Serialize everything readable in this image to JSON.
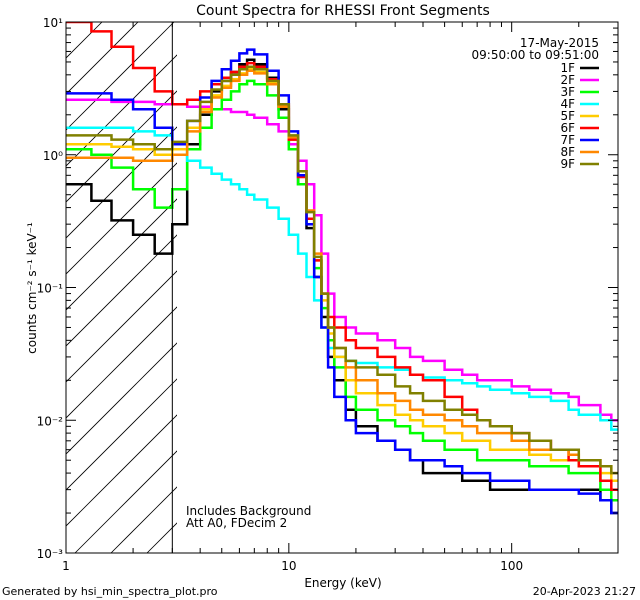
{
  "chart_data": {
    "type": "line",
    "title": "Count Spectra for RHESSI Front Segments",
    "xlabel": "Energy (keV)",
    "ylabel": "counts cm⁻² s⁻¹ keV⁻¹",
    "xscale": "log",
    "yscale": "log",
    "xlim": [
      1,
      300
    ],
    "ylim": [
      0.001,
      10
    ],
    "x_ticks": [
      {
        "value": 1,
        "label": "1"
      },
      {
        "value": 10,
        "label": "10"
      },
      {
        "value": 100,
        "label": "100"
      }
    ],
    "y_ticks": [
      {
        "value": 0.001,
        "label": "10⁻³"
      },
      {
        "value": 0.01,
        "label": "10⁻²"
      },
      {
        "value": 0.1,
        "label": "10⁻¹"
      },
      {
        "value": 1,
        "label": "10⁰"
      },
      {
        "value": 10,
        "label": "10¹"
      }
    ],
    "legend": {
      "date": "17-May-2015",
      "time_range": "09:50:00 to 09:51:00",
      "placement": "top-right"
    },
    "shaded_region": {
      "x_from": 1,
      "x_to": 3,
      "pattern": "diagonal-hatch"
    },
    "annotations": [
      "Includes Background",
      "Att A0, FDecim 2"
    ],
    "footer_left": "Generated by hsi_min_spectra_plot.pro",
    "footer_right": "20-Apr-2023 21:27",
    "series": [
      {
        "name": "1F",
        "color": "#000000",
        "x": [
          1,
          1.3,
          1.6,
          2,
          2.5,
          3,
          3.5,
          4,
          4.5,
          5,
          5.5,
          6,
          6.5,
          7,
          8,
          9,
          10,
          11,
          12,
          13,
          14,
          15,
          16,
          18,
          20,
          25,
          30,
          35,
          40,
          50,
          60,
          70,
          80,
          100,
          120,
          150,
          180,
          200,
          250,
          280
        ],
        "y": [
          0.6,
          0.45,
          0.32,
          0.25,
          0.18,
          0.3,
          1.2,
          2,
          3,
          3.6,
          4.2,
          4.8,
          5.2,
          4.8,
          3.8,
          2.2,
          1.2,
          0.6,
          0.28,
          0.12,
          0.06,
          0.03,
          0.02,
          0.012,
          0.009,
          0.007,
          0.006,
          0.005,
          0.004,
          0.004,
          0.0035,
          0.0035,
          0.003,
          0.003,
          0.003,
          0.003,
          0.003,
          0.003,
          0.0025,
          0.002
        ]
      },
      {
        "name": "2F",
        "color": "#ff00ff",
        "x": [
          1,
          1.3,
          1.6,
          2,
          2.5,
          3,
          3.5,
          4,
          4.5,
          5,
          5.5,
          6,
          6.5,
          7,
          8,
          9,
          10,
          11,
          12,
          13,
          14,
          15,
          16,
          18,
          20,
          25,
          30,
          35,
          40,
          50,
          60,
          70,
          80,
          100,
          120,
          150,
          180,
          200,
          250,
          280
        ],
        "y": [
          2.6,
          2.6,
          2.5,
          2.5,
          2.4,
          2.4,
          2.3,
          2.3,
          2.2,
          2.2,
          2.1,
          2.1,
          2,
          1.9,
          1.7,
          1.5,
          1.2,
          0.9,
          0.6,
          0.35,
          0.18,
          0.09,
          0.06,
          0.05,
          0.045,
          0.04,
          0.035,
          0.03,
          0.028,
          0.024,
          0.022,
          0.02,
          0.02,
          0.018,
          0.017,
          0.016,
          0.015,
          0.013,
          0.011,
          0.01
        ]
      },
      {
        "name": "3F",
        "color": "#00ff00",
        "x": [
          1,
          1.3,
          1.6,
          2,
          2.5,
          3,
          3.5,
          4,
          4.5,
          5,
          5.5,
          6,
          6.5,
          7,
          8,
          9,
          10,
          11,
          12,
          13,
          14,
          15,
          16,
          18,
          20,
          25,
          30,
          35,
          40,
          50,
          60,
          70,
          80,
          100,
          120,
          150,
          180,
          200,
          250,
          280
        ],
        "y": [
          1.1,
          1,
          0.8,
          0.55,
          0.4,
          0.55,
          1.1,
          1.6,
          2.2,
          2.6,
          3,
          3.4,
          3.6,
          3.4,
          2.8,
          1.9,
          1.1,
          0.6,
          0.3,
          0.14,
          0.07,
          0.04,
          0.025,
          0.015,
          0.012,
          0.01,
          0.009,
          0.008,
          0.007,
          0.006,
          0.006,
          0.005,
          0.005,
          0.005,
          0.0045,
          0.0045,
          0.004,
          0.004,
          0.003,
          0.0025
        ]
      },
      {
        "name": "4F",
        "color": "#00ffff",
        "x": [
          1,
          1.3,
          1.6,
          2,
          2.5,
          3,
          3.5,
          4,
          4.5,
          5,
          5.5,
          6,
          6.5,
          7,
          8,
          9,
          10,
          11,
          12,
          13,
          14,
          15,
          16,
          18,
          20,
          25,
          30,
          35,
          40,
          50,
          60,
          70,
          80,
          100,
          120,
          150,
          180,
          200,
          250,
          280
        ],
        "y": [
          1.6,
          1.6,
          1.6,
          1.5,
          1.4,
          1.1,
          0.9,
          0.8,
          0.72,
          0.65,
          0.6,
          0.55,
          0.5,
          0.46,
          0.4,
          0.33,
          0.25,
          0.18,
          0.12,
          0.08,
          0.05,
          0.035,
          0.03,
          0.028,
          0.027,
          0.025,
          0.024,
          0.022,
          0.021,
          0.02,
          0.019,
          0.018,
          0.017,
          0.016,
          0.015,
          0.014,
          0.012,
          0.011,
          0.01,
          0.0085
        ]
      },
      {
        "name": "5F",
        "color": "#ffcc00",
        "x": [
          1,
          1.3,
          1.6,
          2,
          2.5,
          3,
          3.5,
          4,
          4.5,
          5,
          5.5,
          6,
          6.5,
          7,
          8,
          9,
          10,
          11,
          12,
          13,
          14,
          15,
          16,
          18,
          20,
          25,
          30,
          35,
          40,
          50,
          60,
          70,
          80,
          100,
          120,
          150,
          180,
          200,
          250,
          280
        ],
        "y": [
          1.2,
          1.2,
          1.15,
          1.1,
          1,
          1.1,
          1.6,
          2.2,
          2.8,
          3.3,
          3.7,
          4.1,
          4.4,
          4.2,
          3.5,
          2.3,
          1.3,
          0.7,
          0.33,
          0.16,
          0.08,
          0.045,
          0.03,
          0.02,
          0.016,
          0.013,
          0.011,
          0.01,
          0.009,
          0.008,
          0.007,
          0.007,
          0.006,
          0.006,
          0.0055,
          0.005,
          0.005,
          0.0045,
          0.004,
          0.0035
        ]
      },
      {
        "name": "6F",
        "color": "#ff0000",
        "x": [
          1,
          1.3,
          1.6,
          2,
          2.5,
          3,
          3.5,
          4,
          4.5,
          5,
          5.5,
          6,
          6.5,
          7,
          8,
          9,
          10,
          11,
          12,
          13,
          14,
          15,
          16,
          18,
          20,
          25,
          30,
          35,
          40,
          50,
          60,
          70,
          80,
          100,
          120,
          150,
          180,
          200,
          250,
          280
        ],
        "y": [
          10,
          8.5,
          6.5,
          4.5,
          3,
          2.4,
          2.6,
          3,
          3.4,
          3.8,
          4.2,
          4.6,
          4.9,
          4.6,
          3.7,
          2.4,
          1.3,
          0.68,
          0.33,
          0.16,
          0.09,
          0.06,
          0.05,
          0.04,
          0.035,
          0.03,
          0.025,
          0.022,
          0.02,
          0.015,
          0.012,
          0.01,
          0.009,
          0.008,
          0.007,
          0.006,
          0.005,
          0.0045,
          0.0035,
          0.003
        ]
      },
      {
        "name": "7F",
        "color": "#0000ff",
        "x": [
          1,
          1.3,
          1.6,
          2,
          2.5,
          3,
          3.5,
          4,
          4.5,
          5,
          5.5,
          6,
          6.5,
          7,
          8,
          9,
          10,
          11,
          12,
          13,
          14,
          15,
          16,
          18,
          20,
          25,
          30,
          35,
          40,
          50,
          60,
          70,
          80,
          100,
          120,
          150,
          180,
          200,
          250,
          280
        ],
        "y": [
          2.9,
          2.9,
          2.6,
          2.2,
          1.6,
          1.2,
          1.8,
          2.7,
          3.6,
          4.4,
          5.1,
          5.8,
          6.2,
          5.7,
          4.3,
          2.8,
          1.5,
          0.7,
          0.3,
          0.12,
          0.05,
          0.025,
          0.015,
          0.01,
          0.008,
          0.007,
          0.006,
          0.005,
          0.005,
          0.0045,
          0.004,
          0.004,
          0.0035,
          0.0035,
          0.003,
          0.003,
          0.003,
          0.0028,
          0.0025,
          0.002
        ]
      },
      {
        "name": "8F",
        "color": "#ff8800",
        "x": [
          1,
          1.3,
          1.6,
          2,
          2.5,
          3,
          3.5,
          4,
          4.5,
          5,
          5.5,
          6,
          6.5,
          7,
          8,
          9,
          10,
          11,
          12,
          13,
          14,
          15,
          16,
          18,
          20,
          25,
          30,
          35,
          40,
          50,
          60,
          70,
          80,
          100,
          120,
          150,
          180,
          200,
          250,
          280
        ],
        "y": [
          0.95,
          0.95,
          0.95,
          0.9,
          0.9,
          1,
          1.5,
          2.1,
          2.7,
          3.2,
          3.6,
          4,
          4.3,
          4.1,
          3.4,
          2.3,
          1.35,
          0.75,
          0.38,
          0.18,
          0.09,
          0.05,
          0.035,
          0.025,
          0.02,
          0.016,
          0.014,
          0.012,
          0.011,
          0.01,
          0.009,
          0.008,
          0.008,
          0.007,
          0.006,
          0.006,
          0.0055,
          0.005,
          0.0045,
          0.004
        ]
      },
      {
        "name": "9F",
        "color": "#808000",
        "x": [
          1,
          1.3,
          1.6,
          2,
          2.5,
          3,
          3.5,
          4,
          4.5,
          5,
          5.5,
          6,
          6.5,
          7,
          8,
          9,
          10,
          11,
          12,
          13,
          14,
          15,
          16,
          18,
          20,
          25,
          30,
          35,
          40,
          50,
          60,
          70,
          80,
          100,
          120,
          150,
          180,
          200,
          250,
          280
        ],
        "y": [
          1.4,
          1.4,
          1.3,
          1.2,
          1.1,
          1.25,
          1.8,
          2.5,
          3.1,
          3.6,
          4,
          4.4,
          4.6,
          4.4,
          3.6,
          2.4,
          1.4,
          0.75,
          0.37,
          0.17,
          0.09,
          0.05,
          0.035,
          0.028,
          0.025,
          0.022,
          0.018,
          0.016,
          0.014,
          0.012,
          0.011,
          0.01,
          0.009,
          0.008,
          0.007,
          0.006,
          0.006,
          0.005,
          0.0045,
          0.004
        ]
      }
    ]
  }
}
